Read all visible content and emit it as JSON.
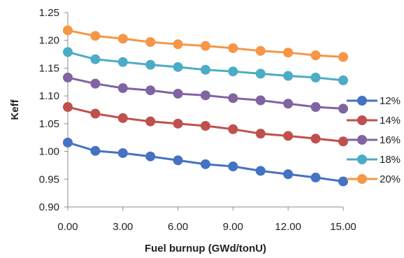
{
  "chart_data": {
    "type": "line",
    "title": "",
    "xlabel": "Fuel burnup (GWd/tonU)",
    "ylabel": "Keff",
    "xlim": [
      0,
      15
    ],
    "ylim": [
      0.9,
      1.25
    ],
    "x_ticks": [
      "0.00",
      "3.00",
      "6.00",
      "9.00",
      "12.00",
      "15.00"
    ],
    "x_tick_values": [
      0,
      3,
      6,
      9,
      12,
      15
    ],
    "y_ticks": [
      "0.90",
      "0.95",
      "1.00",
      "1.05",
      "1.10",
      "1.15",
      "1.20",
      "1.25"
    ],
    "y_tick_values": [
      0.9,
      0.95,
      1.0,
      1.05,
      1.1,
      1.15,
      1.2,
      1.25
    ],
    "grid": false,
    "legend_position": "right",
    "x": [
      0,
      1.5,
      3,
      4.5,
      6,
      7.5,
      9,
      10.5,
      12,
      13.5,
      15
    ],
    "series": [
      {
        "name": "12%",
        "color": "#4472C4",
        "values": [
          1.016,
          1.001,
          0.997,
          0.991,
          0.984,
          0.977,
          0.973,
          0.965,
          0.959,
          0.953,
          0.946
        ]
      },
      {
        "name": "14%",
        "color": "#C0504D",
        "values": [
          1.08,
          1.068,
          1.06,
          1.054,
          1.05,
          1.046,
          1.04,
          1.032,
          1.028,
          1.023,
          1.018
        ]
      },
      {
        "name": "16%",
        "color": "#8064A2",
        "values": [
          1.133,
          1.122,
          1.114,
          1.11,
          1.104,
          1.101,
          1.096,
          1.092,
          1.086,
          1.08,
          1.077
        ]
      },
      {
        "name": "18%",
        "color": "#4BACC6",
        "values": [
          1.179,
          1.166,
          1.161,
          1.156,
          1.152,
          1.147,
          1.144,
          1.14,
          1.136,
          1.133,
          1.128
        ]
      },
      {
        "name": "20%",
        "color": "#F79646",
        "values": [
          1.218,
          1.208,
          1.203,
          1.197,
          1.193,
          1.19,
          1.186,
          1.181,
          1.178,
          1.173,
          1.17
        ]
      }
    ]
  }
}
